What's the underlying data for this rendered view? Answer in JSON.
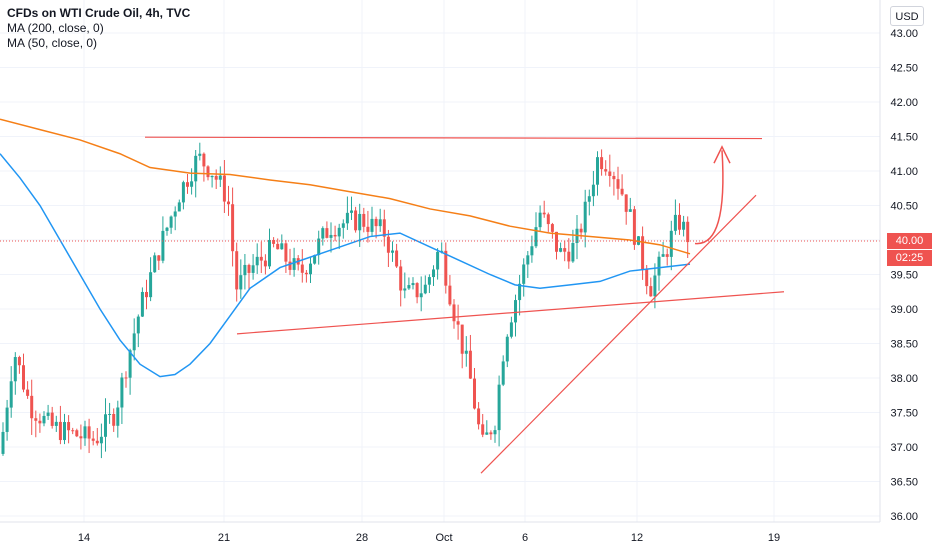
{
  "chart_data": {
    "type": "candlestick",
    "title": "CFDs on WTI Crude Oil, 4h, TVC",
    "indicators": [
      {
        "name": "MA (200, close, 0)",
        "color": "#f57f17"
      },
      {
        "name": "MA (50, close, 0)",
        "color": "#2196f3"
      }
    ],
    "currency_label": "USD",
    "y_ticks": [
      "43.00",
      "42.50",
      "42.00",
      "41.50",
      "41.00",
      "40.50",
      "40.00",
      "39.50",
      "39.00",
      "38.50",
      "38.00",
      "37.50",
      "37.00",
      "36.50",
      "36.00"
    ],
    "x_ticks": [
      "14",
      "21",
      "28",
      "Oct",
      "6",
      "12",
      "19"
    ],
    "ylim": [
      35.9,
      43.25
    ],
    "current_price": "40.00",
    "countdown": "02:25",
    "colors": {
      "up": "#26a69a",
      "down": "#ef5350",
      "drawing": "#ef5350",
      "ma200": "#f57f17",
      "ma50": "#2196f3"
    }
  }
}
